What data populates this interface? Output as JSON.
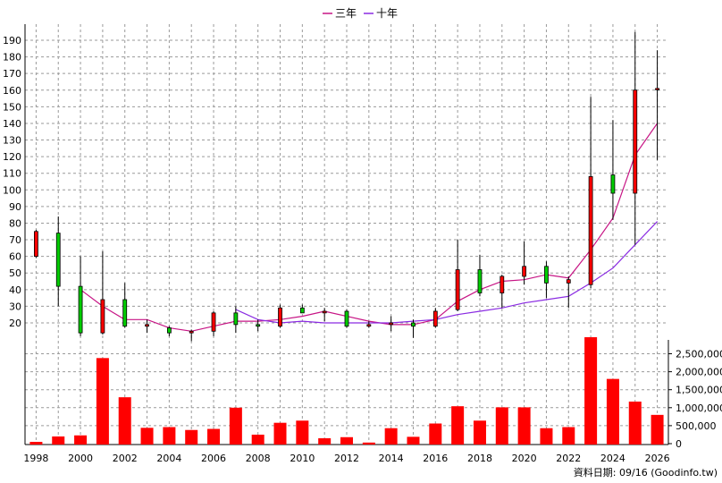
{
  "chart_data": [
    {
      "type": "candlestick",
      "legend": [
        {
          "name": "三年",
          "color": "#c71585"
        },
        {
          "name": "十年",
          "color": "#8a2be2"
        }
      ],
      "y_ticks": [
        20,
        30,
        40,
        50,
        60,
        70,
        80,
        90,
        100,
        110,
        120,
        130,
        140,
        150,
        160,
        170,
        180,
        190
      ],
      "ylim": [
        10,
        195
      ],
      "colors": {
        "up": "#ff0000",
        "down": "#00cc00",
        "wick": "#000000"
      },
      "candles": [
        {
          "year": 1998,
          "open": 60,
          "close": 75,
          "high": 76,
          "low": 59
        },
        {
          "year": 1999,
          "open": 74,
          "close": 42,
          "high": 84,
          "low": 30
        },
        {
          "year": 2000,
          "open": 42,
          "close": 14,
          "high": 60,
          "low": 12
        },
        {
          "year": 2001,
          "open": 14,
          "close": 34,
          "high": 63,
          "low": 13
        },
        {
          "year": 2002,
          "open": 34,
          "close": 18,
          "high": 44,
          "low": 17
        },
        {
          "year": 2003,
          "open": 18,
          "close": 19,
          "high": 22,
          "low": 14
        },
        {
          "year": 2004,
          "open": 17,
          "close": 14,
          "high": 18,
          "low": 12
        },
        {
          "year": 2005,
          "open": 14,
          "close": 15,
          "high": 16,
          "low": 9
        },
        {
          "year": 2006,
          "open": 15,
          "close": 26,
          "high": 27,
          "low": 12
        },
        {
          "year": 2007,
          "open": 26,
          "close": 19,
          "high": 30,
          "low": 14
        },
        {
          "year": 2008,
          "open": 19,
          "close": 18,
          "high": 22,
          "low": 15
        },
        {
          "year": 2009,
          "open": 18,
          "close": 29,
          "high": 31,
          "low": 17
        },
        {
          "year": 2010,
          "open": 29,
          "close": 26,
          "high": 31,
          "low": 26
        },
        {
          "year": 2011,
          "open": 26,
          "close": 27,
          "high": 29,
          "low": 21
        },
        {
          "year": 2012,
          "open": 27,
          "close": 18,
          "high": 28,
          "low": 17
        },
        {
          "year": 2013,
          "open": 18,
          "close": 19,
          "high": 21,
          "low": 17
        },
        {
          "year": 2014,
          "open": 19,
          "close": 20,
          "high": 24,
          "low": 15
        },
        {
          "year": 2015,
          "open": 20,
          "close": 18,
          "high": 22,
          "low": 11
        },
        {
          "year": 2016,
          "open": 18,
          "close": 27,
          "high": 29,
          "low": 17
        },
        {
          "year": 2017,
          "open": 28,
          "close": 52,
          "high": 70,
          "low": 27
        },
        {
          "year": 2018,
          "open": 52,
          "close": 38,
          "high": 61,
          "low": 36
        },
        {
          "year": 2019,
          "open": 38,
          "close": 48,
          "high": 49,
          "low": 29
        },
        {
          "year": 2020,
          "open": 48,
          "close": 54,
          "high": 69,
          "low": 43
        },
        {
          "year": 2021,
          "open": 54,
          "close": 44,
          "high": 57,
          "low": 35
        },
        {
          "year": 2022,
          "open": 44,
          "close": 46,
          "high": 48,
          "low": 29
        },
        {
          "year": 2023,
          "open": 43,
          "close": 108,
          "high": 156,
          "low": 41
        },
        {
          "year": 2024,
          "open": 109,
          "close": 98,
          "high": 142,
          "low": 82
        },
        {
          "year": 2025,
          "open": 98,
          "close": 160,
          "high": 195,
          "low": 67
        },
        {
          "year": 2026,
          "open": 161,
          "close": 161,
          "high": 184,
          "low": 118
        }
      ],
      "series": [
        {
          "name": "三年",
          "color": "#c71585",
          "x": [
            2000,
            2001,
            2002,
            2003,
            2004,
            2005,
            2006,
            2007,
            2008,
            2009,
            2010,
            2011,
            2012,
            2013,
            2014,
            2015,
            2016,
            2017,
            2018,
            2019,
            2020,
            2021,
            2022,
            2023,
            2024,
            2025,
            2026
          ],
          "values": [
            40,
            30,
            22,
            22,
            17,
            15,
            18,
            21,
            21,
            22,
            24,
            27,
            24,
            21,
            19,
            19,
            22,
            33,
            40,
            45,
            46,
            49,
            47,
            64,
            83,
            121,
            140
          ]
        },
        {
          "name": "十年",
          "color": "#8a2be2",
          "x": [
            2007,
            2008,
            2009,
            2010,
            2011,
            2012,
            2013,
            2014,
            2015,
            2016,
            2017,
            2018,
            2019,
            2020,
            2021,
            2022,
            2023,
            2024,
            2025,
            2026
          ],
          "values": [
            28,
            22,
            20,
            21,
            20,
            20,
            20,
            20,
            21,
            22,
            25,
            27,
            29,
            32,
            34,
            36,
            44,
            53,
            67,
            81
          ]
        }
      ]
    },
    {
      "type": "bar",
      "y_ticks": [
        "0",
        "500,000",
        "1,000,000",
        "1,500,000",
        "2,000,000",
        "2,500,000"
      ],
      "y_tick_values": [
        0,
        500000,
        1000000,
        1500000,
        2000000,
        2500000
      ],
      "ylim": [
        0,
        2950000
      ],
      "color": "#ff0000",
      "categories": [
        1998,
        1999,
        2000,
        2001,
        2002,
        2003,
        2004,
        2005,
        2006,
        2007,
        2008,
        2009,
        2010,
        2011,
        2012,
        2013,
        2014,
        2015,
        2016,
        2017,
        2018,
        2019,
        2020,
        2021,
        2022,
        2023,
        2024,
        2025,
        2026
      ],
      "values": [
        50000,
        200000,
        230000,
        2380000,
        1290000,
        440000,
        460000,
        380000,
        410000,
        1000000,
        250000,
        580000,
        640000,
        150000,
        180000,
        30000,
        430000,
        190000,
        560000,
        1040000,
        640000,
        1010000,
        1010000,
        430000,
        460000,
        2960000,
        1800000,
        1170000,
        800000
      ]
    }
  ],
  "x_ticks": [
    "1998",
    "2000",
    "2002",
    "2004",
    "2006",
    "2008",
    "2010",
    "2012",
    "2014",
    "2016",
    "2018",
    "2020",
    "2022",
    "2024",
    "2026"
  ],
  "credit": "資料日期: 09/16 (Goodinfo.tw)"
}
